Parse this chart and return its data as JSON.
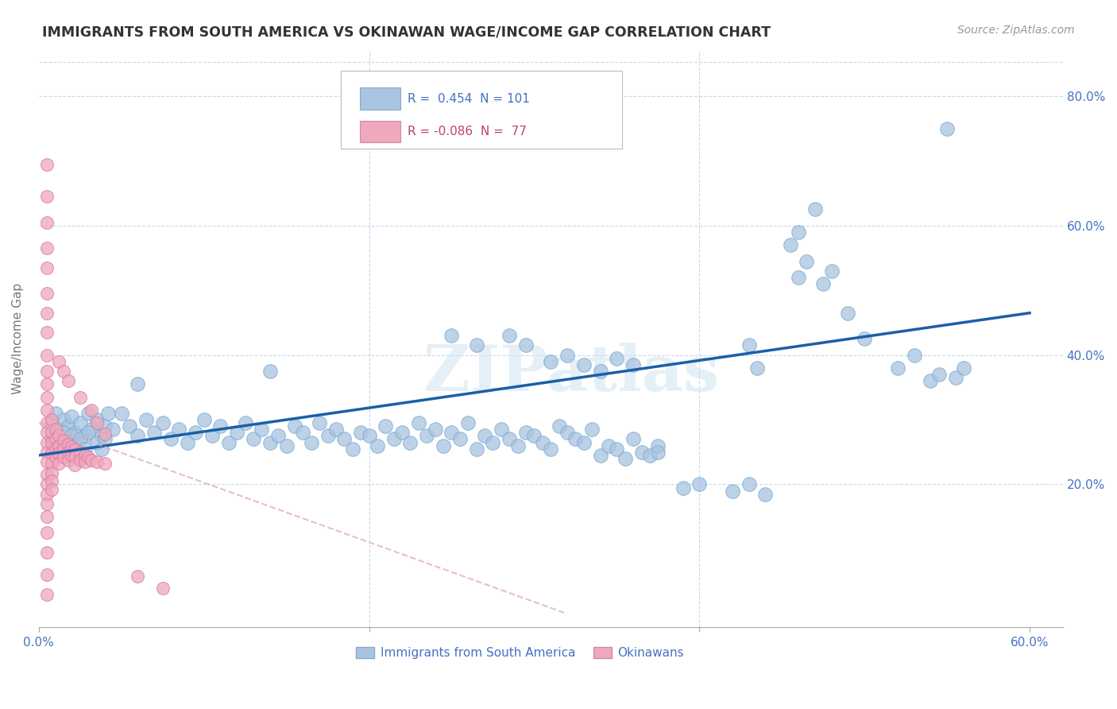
{
  "title": "IMMIGRANTS FROM SOUTH AMERICA VS OKINAWAN WAGE/INCOME GAP CORRELATION CHART",
  "source": "Source: ZipAtlas.com",
  "ylabel": "Wage/Income Gap",
  "xlim": [
    0.0,
    0.62
  ],
  "ylim": [
    -0.02,
    0.87
  ],
  "xtick_labels": [
    "0.0%",
    "",
    "",
    "60.0%"
  ],
  "xtick_vals": [
    0.0,
    0.2,
    0.4,
    0.6
  ],
  "ytick_labels": [
    "20.0%",
    "40.0%",
    "60.0%",
    "80.0%"
  ],
  "ytick_vals": [
    0.2,
    0.4,
    0.6,
    0.8
  ],
  "r_blue": 0.454,
  "n_blue": 101,
  "r_pink": -0.086,
  "n_pink": 77,
  "blue_color": "#a8c4e0",
  "pink_color": "#f0a8bc",
  "blue_line_color": "#1a5fa8",
  "pink_line_color": "#e8a0b0",
  "watermark": "ZIPatlas",
  "blue_line_x0": 0.0,
  "blue_line_y0": 0.245,
  "blue_line_x1": 0.6,
  "blue_line_y1": 0.465,
  "pink_line_x0": 0.0,
  "pink_line_y0": 0.295,
  "pink_line_x1": 0.32,
  "pink_line_y1": 0.0,
  "blue_scatter": [
    [
      0.008,
      0.295
    ],
    [
      0.01,
      0.31
    ],
    [
      0.012,
      0.285
    ],
    [
      0.015,
      0.3
    ],
    [
      0.018,
      0.29
    ],
    [
      0.02,
      0.305
    ],
    [
      0.022,
      0.28
    ],
    [
      0.025,
      0.295
    ],
    [
      0.028,
      0.275
    ],
    [
      0.03,
      0.31
    ],
    [
      0.032,
      0.285
    ],
    [
      0.035,
      0.3
    ],
    [
      0.038,
      0.275
    ],
    [
      0.04,
      0.29
    ],
    [
      0.042,
      0.31
    ],
    [
      0.045,
      0.285
    ],
    [
      0.008,
      0.27
    ],
    [
      0.012,
      0.26
    ],
    [
      0.015,
      0.28
    ],
    [
      0.018,
      0.265
    ],
    [
      0.02,
      0.275
    ],
    [
      0.022,
      0.26
    ],
    [
      0.025,
      0.27
    ],
    [
      0.028,
      0.255
    ],
    [
      0.03,
      0.28
    ],
    [
      0.035,
      0.265
    ],
    [
      0.038,
      0.255
    ],
    [
      0.04,
      0.27
    ],
    [
      0.05,
      0.31
    ],
    [
      0.055,
      0.29
    ],
    [
      0.06,
      0.275
    ],
    [
      0.065,
      0.3
    ],
    [
      0.07,
      0.28
    ],
    [
      0.075,
      0.295
    ],
    [
      0.08,
      0.27
    ],
    [
      0.085,
      0.285
    ],
    [
      0.09,
      0.265
    ],
    [
      0.095,
      0.28
    ],
    [
      0.1,
      0.3
    ],
    [
      0.105,
      0.275
    ],
    [
      0.11,
      0.29
    ],
    [
      0.115,
      0.265
    ],
    [
      0.12,
      0.28
    ],
    [
      0.125,
      0.295
    ],
    [
      0.13,
      0.27
    ],
    [
      0.135,
      0.285
    ],
    [
      0.14,
      0.265
    ],
    [
      0.145,
      0.275
    ],
    [
      0.15,
      0.26
    ],
    [
      0.155,
      0.29
    ],
    [
      0.16,
      0.28
    ],
    [
      0.165,
      0.265
    ],
    [
      0.17,
      0.295
    ],
    [
      0.175,
      0.275
    ],
    [
      0.18,
      0.285
    ],
    [
      0.185,
      0.27
    ],
    [
      0.19,
      0.255
    ],
    [
      0.195,
      0.28
    ],
    [
      0.2,
      0.275
    ],
    [
      0.205,
      0.26
    ],
    [
      0.21,
      0.29
    ],
    [
      0.215,
      0.27
    ],
    [
      0.22,
      0.28
    ],
    [
      0.225,
      0.265
    ],
    [
      0.23,
      0.295
    ],
    [
      0.235,
      0.275
    ],
    [
      0.24,
      0.285
    ],
    [
      0.245,
      0.26
    ],
    [
      0.25,
      0.28
    ],
    [
      0.255,
      0.27
    ],
    [
      0.26,
      0.295
    ],
    [
      0.265,
      0.255
    ],
    [
      0.27,
      0.275
    ],
    [
      0.275,
      0.265
    ],
    [
      0.28,
      0.285
    ],
    [
      0.285,
      0.27
    ],
    [
      0.29,
      0.26
    ],
    [
      0.295,
      0.28
    ],
    [
      0.3,
      0.275
    ],
    [
      0.305,
      0.265
    ],
    [
      0.31,
      0.255
    ],
    [
      0.315,
      0.29
    ],
    [
      0.32,
      0.28
    ],
    [
      0.325,
      0.27
    ],
    [
      0.33,
      0.265
    ],
    [
      0.335,
      0.285
    ],
    [
      0.34,
      0.245
    ],
    [
      0.345,
      0.26
    ],
    [
      0.35,
      0.255
    ],
    [
      0.355,
      0.24
    ],
    [
      0.36,
      0.27
    ],
    [
      0.365,
      0.25
    ],
    [
      0.37,
      0.245
    ],
    [
      0.375,
      0.26
    ],
    [
      0.06,
      0.355
    ],
    [
      0.14,
      0.375
    ],
    [
      0.25,
      0.43
    ],
    [
      0.265,
      0.415
    ],
    [
      0.285,
      0.43
    ],
    [
      0.295,
      0.415
    ],
    [
      0.31,
      0.39
    ],
    [
      0.32,
      0.4
    ],
    [
      0.33,
      0.385
    ],
    [
      0.34,
      0.375
    ],
    [
      0.35,
      0.395
    ],
    [
      0.36,
      0.385
    ],
    [
      0.375,
      0.25
    ],
    [
      0.42,
      0.19
    ],
    [
      0.43,
      0.2
    ],
    [
      0.44,
      0.185
    ],
    [
      0.455,
      0.57
    ],
    [
      0.46,
      0.52
    ],
    [
      0.465,
      0.545
    ],
    [
      0.46,
      0.59
    ],
    [
      0.47,
      0.625
    ],
    [
      0.475,
      0.51
    ],
    [
      0.48,
      0.53
    ],
    [
      0.49,
      0.465
    ],
    [
      0.5,
      0.425
    ],
    [
      0.52,
      0.38
    ],
    [
      0.53,
      0.4
    ],
    [
      0.54,
      0.36
    ],
    [
      0.545,
      0.37
    ],
    [
      0.55,
      0.75
    ],
    [
      0.555,
      0.365
    ],
    [
      0.56,
      0.38
    ],
    [
      0.43,
      0.415
    ],
    [
      0.435,
      0.38
    ],
    [
      0.39,
      0.195
    ],
    [
      0.4,
      0.2
    ]
  ],
  "pink_scatter": [
    [
      0.005,
      0.695
    ],
    [
      0.005,
      0.645
    ],
    [
      0.005,
      0.605
    ],
    [
      0.005,
      0.565
    ],
    [
      0.005,
      0.535
    ],
    [
      0.005,
      0.495
    ],
    [
      0.005,
      0.465
    ],
    [
      0.005,
      0.435
    ],
    [
      0.005,
      0.4
    ],
    [
      0.005,
      0.375
    ],
    [
      0.005,
      0.355
    ],
    [
      0.005,
      0.335
    ],
    [
      0.005,
      0.315
    ],
    [
      0.005,
      0.295
    ],
    [
      0.005,
      0.28
    ],
    [
      0.005,
      0.265
    ],
    [
      0.005,
      0.25
    ],
    [
      0.005,
      0.235
    ],
    [
      0.005,
      0.215
    ],
    [
      0.005,
      0.2
    ],
    [
      0.005,
      0.185
    ],
    [
      0.005,
      0.17
    ],
    [
      0.005,
      0.15
    ],
    [
      0.005,
      0.125
    ],
    [
      0.005,
      0.095
    ],
    [
      0.005,
      0.06
    ],
    [
      0.005,
      0.03
    ],
    [
      0.008,
      0.3
    ],
    [
      0.008,
      0.28
    ],
    [
      0.008,
      0.265
    ],
    [
      0.008,
      0.248
    ],
    [
      0.008,
      0.232
    ],
    [
      0.008,
      0.218
    ],
    [
      0.008,
      0.205
    ],
    [
      0.008,
      0.192
    ],
    [
      0.01,
      0.285
    ],
    [
      0.01,
      0.27
    ],
    [
      0.01,
      0.255
    ],
    [
      0.01,
      0.242
    ],
    [
      0.012,
      0.275
    ],
    [
      0.012,
      0.26
    ],
    [
      0.012,
      0.248
    ],
    [
      0.012,
      0.232
    ],
    [
      0.015,
      0.268
    ],
    [
      0.015,
      0.255
    ],
    [
      0.015,
      0.242
    ],
    [
      0.018,
      0.262
    ],
    [
      0.018,
      0.25
    ],
    [
      0.018,
      0.238
    ],
    [
      0.02,
      0.258
    ],
    [
      0.02,
      0.245
    ],
    [
      0.022,
      0.255
    ],
    [
      0.022,
      0.242
    ],
    [
      0.022,
      0.23
    ],
    [
      0.025,
      0.25
    ],
    [
      0.025,
      0.238
    ],
    [
      0.028,
      0.245
    ],
    [
      0.028,
      0.235
    ],
    [
      0.03,
      0.242
    ],
    [
      0.032,
      0.238
    ],
    [
      0.035,
      0.235
    ],
    [
      0.04,
      0.232
    ],
    [
      0.012,
      0.39
    ],
    [
      0.015,
      0.375
    ],
    [
      0.018,
      0.36
    ],
    [
      0.025,
      0.335
    ],
    [
      0.032,
      0.315
    ],
    [
      0.035,
      0.295
    ],
    [
      0.04,
      0.278
    ],
    [
      0.06,
      0.058
    ],
    [
      0.075,
      0.04
    ]
  ]
}
